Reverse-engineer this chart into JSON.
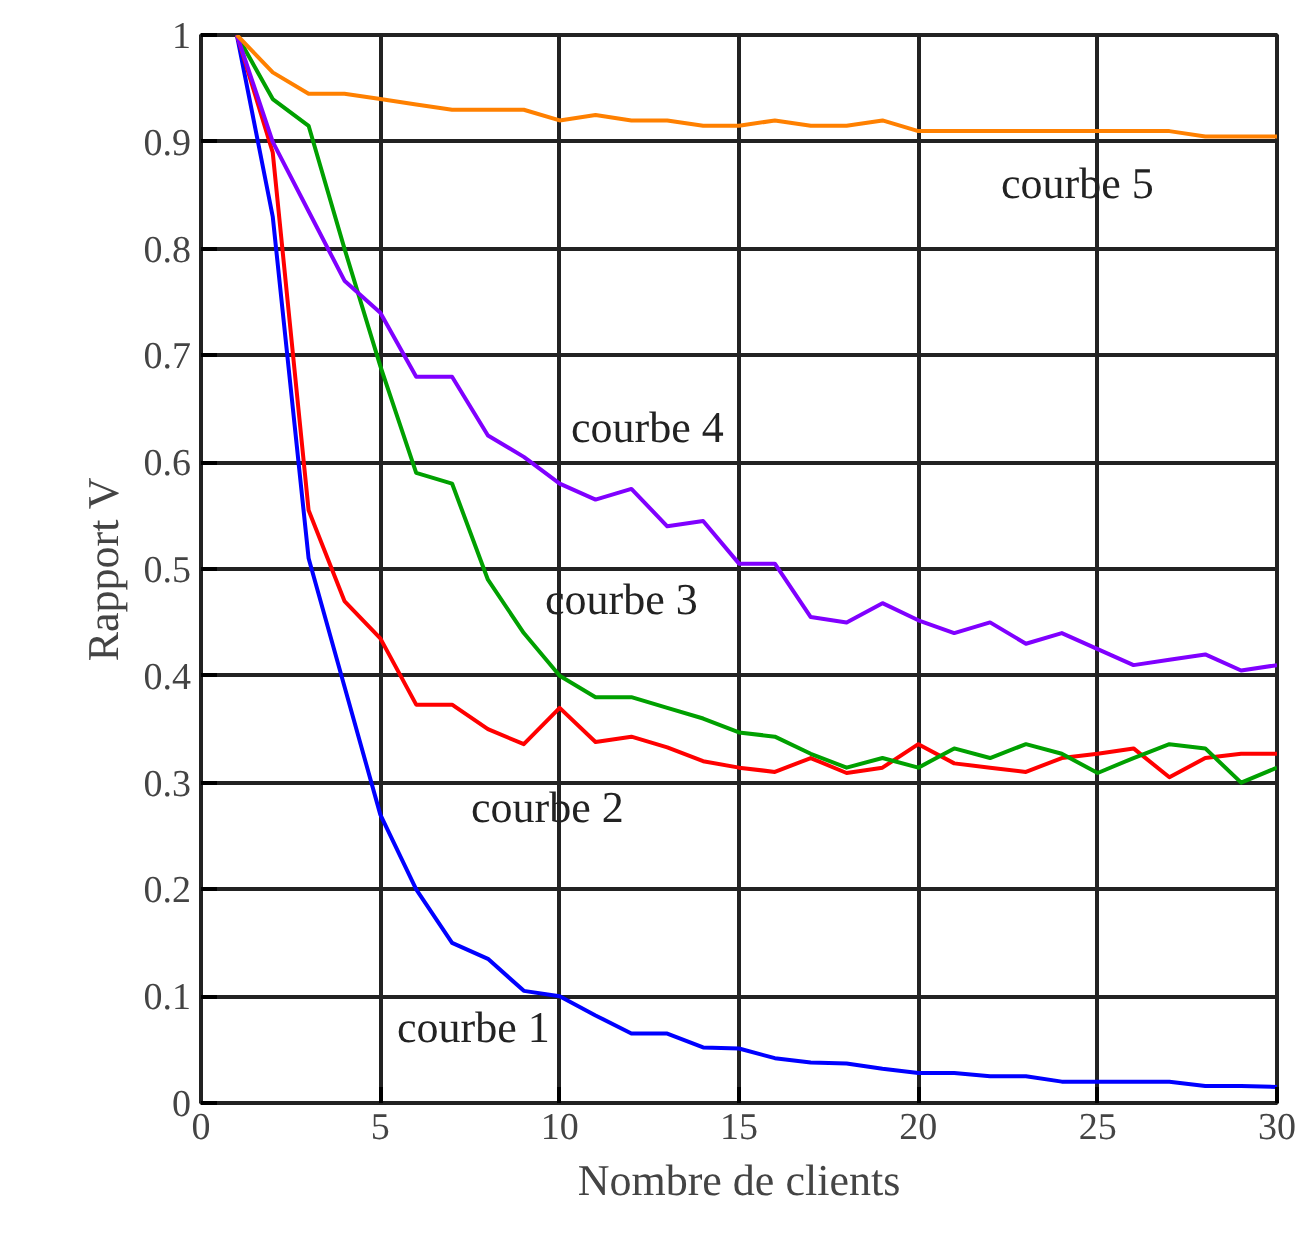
{
  "chart_data": {
    "type": "line",
    "xlabel": "Nombre de clients",
    "ylabel": "Rapport V",
    "x": [
      1,
      2,
      3,
      4,
      5,
      6,
      7,
      8,
      9,
      10,
      11,
      12,
      13,
      14,
      15,
      16,
      17,
      18,
      19,
      20,
      21,
      22,
      23,
      24,
      25,
      26,
      27,
      28,
      29,
      30
    ],
    "series": [
      {
        "color": "#0000ff",
        "values": [
          1,
          0.83,
          0.51,
          0.39,
          0.27,
          0.2,
          0.15,
          0.135,
          0.105,
          0.1,
          0.082,
          0.065,
          0.065,
          0.052,
          0.051,
          0.042,
          0.038,
          0.037,
          0.032,
          0.028,
          0.028,
          0.025,
          0.025,
          0.02,
          0.02,
          0.02,
          0.02,
          0.016,
          0.016,
          0.015
        ]
      },
      {
        "color": "#ff0000",
        "values": [
          1,
          0.89,
          0.555,
          0.47,
          0.435,
          0.373,
          0.373,
          0.35,
          0.336,
          0.37,
          0.338,
          0.343,
          0.333,
          0.32,
          0.314,
          0.31,
          0.323,
          0.309,
          0.314,
          0.336,
          0.318,
          0.314,
          0.31,
          0.323,
          0.327,
          0.332,
          0.305,
          0.323,
          0.327,
          0.327
        ]
      },
      {
        "color": "#00a000",
        "values": [
          1,
          0.94,
          0.915,
          0.8,
          0.69,
          0.59,
          0.58,
          0.49,
          0.44,
          0.4,
          0.38,
          0.38,
          0.37,
          0.36,
          0.347,
          0.343,
          0.327,
          0.314,
          0.323,
          0.314,
          0.332,
          0.323,
          0.336,
          0.327,
          0.309,
          0.323,
          0.336,
          0.332,
          0.3,
          0.314
        ]
      },
      {
        "color": "#8000ff",
        "values": [
          1,
          0.9,
          0.835,
          0.77,
          0.74,
          0.68,
          0.68,
          0.625,
          0.605,
          0.58,
          0.565,
          0.575,
          0.54,
          0.545,
          0.505,
          0.505,
          0.455,
          0.45,
          0.468,
          0.452,
          0.44,
          0.45,
          0.43,
          0.44,
          0.425,
          0.41,
          0.415,
          0.42,
          0.405,
          0.41
        ]
      },
      {
        "color": "#ff8000",
        "values": [
          1,
          0.965,
          0.945,
          0.945,
          0.94,
          0.935,
          0.93,
          0.93,
          0.93,
          0.92,
          0.925,
          0.92,
          0.92,
          0.915,
          0.915,
          0.92,
          0.915,
          0.915,
          0.92,
          0.91,
          0.91,
          0.91,
          0.91,
          0.91,
          0.91,
          0.91,
          0.91,
          0.905,
          0.905,
          0.905
        ]
      }
    ],
    "annotations": [
      "courbe 1",
      "courbe 2",
      "courbe 3",
      "courbe 4",
      "courbe 5"
    ],
    "xlim": [
      0,
      30
    ],
    "ylim": [
      0,
      1
    ],
    "xticks": [
      0,
      5,
      10,
      15,
      20,
      25,
      30
    ],
    "yticks": [
      0,
      0.1,
      0.2,
      0.3,
      0.4,
      0.5,
      0.6,
      0.7,
      0.8,
      0.9,
      1
    ],
    "grid": true,
    "line_style": "solid",
    "marker": "none"
  }
}
